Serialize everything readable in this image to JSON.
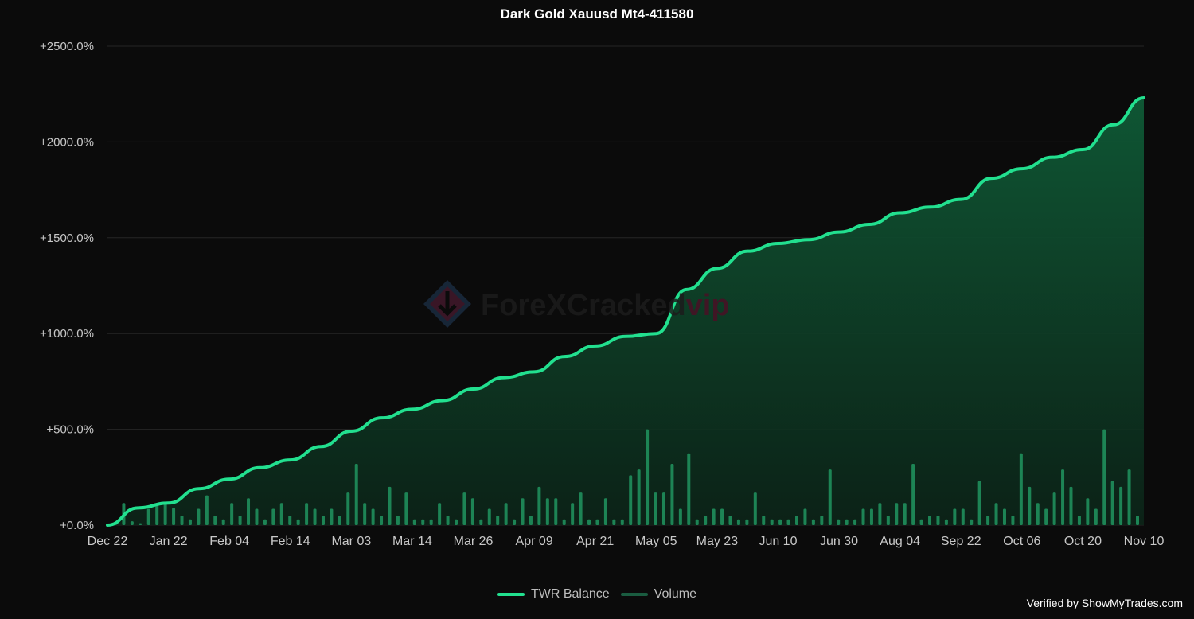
{
  "chart_data": {
    "type": "line",
    "title": "Dark Gold Xauusd Mt4-411580",
    "xlabel": "",
    "ylabel": "",
    "ylim": [
      0,
      2500
    ],
    "y_ticks": [
      "+0.0%",
      "+500.0%",
      "+1000.0%",
      "+1500.0%",
      "+2000.0%",
      "+2500.0%"
    ],
    "y_tick_values": [
      0,
      500,
      1000,
      1500,
      2000,
      2500
    ],
    "x_ticks": [
      "Dec 22",
      "Jan 22",
      "Feb 04",
      "Feb 14",
      "Mar 03",
      "Mar 14",
      "Mar 26",
      "Apr 09",
      "Apr 21",
      "May 05",
      "May 23",
      "Jun 10",
      "Jun 30",
      "Aug 04",
      "Sep 22",
      "Oct 06",
      "Oct 20",
      "Nov 10"
    ],
    "grid": true,
    "legend_placement": "bottom-center",
    "series": [
      {
        "name": "TWR Balance",
        "type": "line-area",
        "color": "#22e08f",
        "x": [
          0,
          0.5,
          1,
          1.5,
          2,
          2.5,
          3,
          3.5,
          4,
          4.5,
          5,
          5.5,
          6,
          6.5,
          7,
          7.5,
          8,
          8.5,
          9,
          9.5,
          10,
          10.5,
          11,
          11.5,
          12,
          12.5,
          13,
          13.5,
          14,
          14.5,
          15,
          15.5,
          16,
          16.5,
          17
        ],
        "values": [
          0,
          90,
          115,
          190,
          240,
          300,
          340,
          410,
          490,
          560,
          605,
          650,
          710,
          770,
          800,
          880,
          935,
          985,
          1000,
          1230,
          1340,
          1430,
          1470,
          1490,
          1530,
          1570,
          1630,
          1660,
          1700,
          1810,
          1860,
          1920,
          1960,
          2090,
          2230
        ]
      },
      {
        "name": "Volume",
        "type": "bar",
        "color": "#1f8f5c",
        "values": [
          10,
          115,
          20,
          10,
          85,
          115,
          115,
          90,
          50,
          30,
          85,
          155,
          50,
          30,
          115,
          50,
          140,
          85,
          30,
          85,
          115,
          50,
          30,
          115,
          85,
          50,
          85,
          50,
          170,
          320,
          115,
          85,
          50,
          200,
          50,
          170,
          30,
          30,
          30,
          115,
          50,
          30,
          170,
          140,
          30,
          85,
          50,
          115,
          30,
          140,
          50,
          200,
          140,
          140,
          30,
          115,
          170,
          30,
          30,
          140,
          30,
          30,
          260,
          290,
          500,
          170,
          170,
          320,
          85,
          375,
          30,
          50,
          85,
          85,
          50,
          30,
          30,
          170,
          50,
          30,
          30,
          30,
          50,
          85,
          30,
          50,
          290,
          30,
          30,
          30,
          85,
          85,
          115,
          50,
          115,
          115,
          320,
          30,
          50,
          50,
          30,
          85,
          85,
          30,
          230,
          50,
          115,
          85,
          50,
          375,
          200,
          115,
          85,
          170,
          290,
          200,
          50,
          140,
          85,
          500,
          230,
          200,
          290,
          50
        ]
      }
    ]
  },
  "legend": {
    "items": [
      {
        "label": "TWR Balance",
        "color": "#22e08f"
      },
      {
        "label": "Volume",
        "color": "#1a5c40"
      }
    ]
  },
  "watermark": {
    "main_text": "ForeXCracked",
    "accent_text": "vip"
  },
  "footer": {
    "verified_text": "Verified by ShowMyTrades.com"
  }
}
